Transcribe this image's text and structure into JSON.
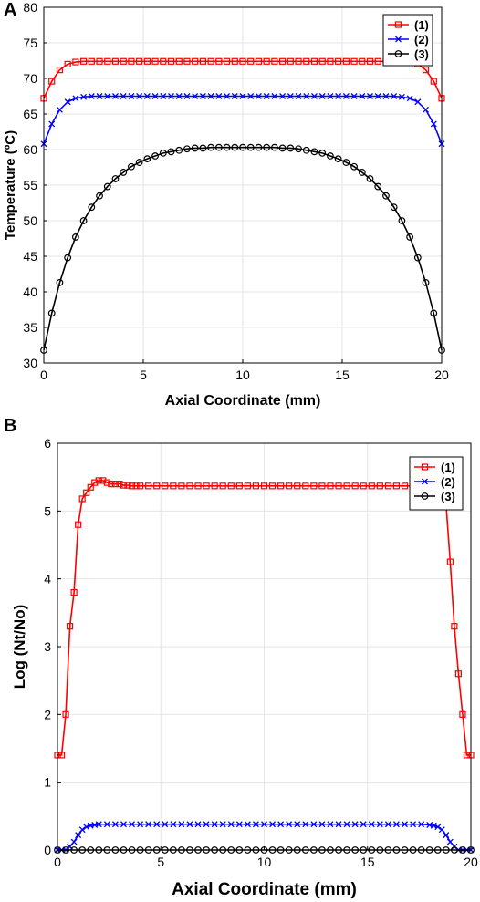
{
  "panels": {
    "a_label": "A",
    "b_label": "B"
  },
  "colors": {
    "series1": "#ff0000",
    "series2": "#0000ff",
    "series3": "#000000",
    "grid": "#e6e6e6"
  },
  "chart_data": [
    {
      "type": "line",
      "panel": "A",
      "xlabel": "Axial Coordinate (mm)",
      "ylabel": "Temperature (ºC)",
      "xlim": [
        0,
        20
      ],
      "ylim": [
        30,
        80
      ],
      "xticks": [
        "0",
        "5",
        "10",
        "15",
        "20"
      ],
      "yticks": [
        "30",
        "35",
        "40",
        "45",
        "50",
        "55",
        "60",
        "65",
        "70",
        "75",
        "80"
      ],
      "grid": true,
      "legend": "top-right",
      "series": [
        {
          "name": "(1)",
          "marker": "square",
          "color": "#ff0000",
          "x": [
            0,
            0.4,
            0.8,
            1.2,
            1.6,
            2,
            2.4,
            2.8,
            3.2,
            3.6,
            4,
            4.4,
            4.8,
            5.2,
            5.6,
            6,
            6.4,
            6.8,
            7.2,
            7.6,
            8,
            8.4,
            8.8,
            9.2,
            9.6,
            10,
            10.4,
            10.8,
            11.2,
            11.6,
            12,
            12.4,
            12.8,
            13.2,
            13.6,
            14,
            14.4,
            14.8,
            15.2,
            15.6,
            16,
            16.4,
            16.8,
            17.2,
            17.6,
            18,
            18.4,
            18.8,
            19.2,
            19.6,
            20
          ],
          "y": [
            67.2,
            69.6,
            71.2,
            72.0,
            72.3,
            72.4,
            72.4,
            72.4,
            72.4,
            72.4,
            72.4,
            72.4,
            72.4,
            72.4,
            72.4,
            72.4,
            72.4,
            72.4,
            72.4,
            72.4,
            72.4,
            72.4,
            72.4,
            72.4,
            72.4,
            72.4,
            72.4,
            72.4,
            72.4,
            72.4,
            72.4,
            72.4,
            72.4,
            72.4,
            72.4,
            72.4,
            72.4,
            72.4,
            72.4,
            72.4,
            72.4,
            72.4,
            72.4,
            72.4,
            72.4,
            72.4,
            72.3,
            72.0,
            71.2,
            69.6,
            67.2
          ]
        },
        {
          "name": "(2)",
          "marker": "x",
          "color": "#0000ff",
          "x": [
            0,
            0.4,
            0.8,
            1.2,
            1.6,
            2,
            2.4,
            2.8,
            3.2,
            3.6,
            4,
            4.4,
            4.8,
            5.2,
            5.6,
            6,
            6.4,
            6.8,
            7.2,
            7.6,
            8,
            8.4,
            8.8,
            9.2,
            9.6,
            10,
            10.4,
            10.8,
            11.2,
            11.6,
            12,
            12.4,
            12.8,
            13.2,
            13.6,
            14,
            14.4,
            14.8,
            15.2,
            15.6,
            16,
            16.4,
            16.8,
            17.2,
            17.6,
            18,
            18.4,
            18.8,
            19.2,
            19.6,
            20
          ],
          "y": [
            60.8,
            63.6,
            65.6,
            66.7,
            67.2,
            67.4,
            67.5,
            67.5,
            67.5,
            67.5,
            67.5,
            67.5,
            67.5,
            67.5,
            67.5,
            67.5,
            67.5,
            67.5,
            67.5,
            67.5,
            67.5,
            67.5,
            67.5,
            67.5,
            67.5,
            67.5,
            67.5,
            67.5,
            67.5,
            67.5,
            67.5,
            67.5,
            67.5,
            67.5,
            67.5,
            67.5,
            67.5,
            67.5,
            67.5,
            67.5,
            67.5,
            67.5,
            67.5,
            67.5,
            67.5,
            67.4,
            67.2,
            66.7,
            65.6,
            63.6,
            60.8
          ]
        },
        {
          "name": "(3)",
          "marker": "circle",
          "color": "#000000",
          "x": [
            0,
            0.4,
            0.8,
            1.2,
            1.6,
            2,
            2.4,
            2.8,
            3.2,
            3.6,
            4,
            4.4,
            4.8,
            5.2,
            5.6,
            6,
            6.4,
            6.8,
            7.2,
            7.6,
            8,
            8.4,
            8.8,
            9.2,
            9.6,
            10,
            10.4,
            10.8,
            11.2,
            11.6,
            12,
            12.4,
            12.8,
            13.2,
            13.6,
            14,
            14.4,
            14.8,
            15.2,
            15.6,
            16,
            16.4,
            16.8,
            17.2,
            17.6,
            18,
            18.4,
            18.8,
            19.2,
            19.6,
            20
          ],
          "y": [
            31.8,
            37.0,
            41.3,
            44.8,
            47.7,
            50.0,
            51.9,
            53.5,
            54.8,
            55.9,
            56.8,
            57.6,
            58.2,
            58.7,
            59.1,
            59.5,
            59.7,
            59.9,
            60.1,
            60.2,
            60.2,
            60.3,
            60.3,
            60.3,
            60.3,
            60.3,
            60.3,
            60.3,
            60.3,
            60.3,
            60.2,
            60.2,
            60.1,
            59.9,
            59.7,
            59.5,
            59.1,
            58.7,
            58.2,
            57.6,
            56.8,
            55.9,
            54.8,
            53.5,
            51.9,
            50.0,
            47.7,
            44.8,
            41.3,
            37.0,
            31.8
          ]
        }
      ]
    },
    {
      "type": "line",
      "panel": "B",
      "xlabel": "Axial Coordinate (mm)",
      "ylabel": "Log (Nt/No)",
      "xlim": [
        0,
        20
      ],
      "ylim": [
        0,
        6
      ],
      "xticks": [
        "0",
        "5",
        "10",
        "15",
        "20"
      ],
      "yticks": [
        "0",
        "1",
        "2",
        "3",
        "4",
        "5",
        "6"
      ],
      "grid": true,
      "legend": "top-right",
      "series": [
        {
          "name": "(1)",
          "marker": "square",
          "color": "#ff0000",
          "x": [
            0,
            0.2,
            0.4,
            0.6,
            0.8,
            1.0,
            1.2,
            1.4,
            1.6,
            1.8,
            2.0,
            2.2,
            2.4,
            2.6,
            2.8,
            3.0,
            3.2,
            3.4,
            3.6,
            3.8,
            4.0,
            4.4,
            4.8,
            5.2,
            5.6,
            6,
            6.4,
            6.8,
            7.2,
            7.6,
            8,
            8.4,
            8.8,
            9.2,
            9.6,
            10,
            10.4,
            10.8,
            11.2,
            11.6,
            12,
            12.4,
            12.8,
            13.2,
            13.6,
            14,
            14.4,
            14.8,
            15.2,
            15.6,
            16,
            16.4,
            16.8,
            17.2,
            17.6,
            18,
            18.4,
            18.8,
            19.0,
            19.2,
            19.4,
            19.6,
            19.8,
            20
          ],
          "y": [
            1.4,
            1.4,
            2.0,
            3.3,
            3.8,
            4.8,
            5.18,
            5.27,
            5.35,
            5.42,
            5.45,
            5.45,
            5.42,
            5.4,
            5.4,
            5.4,
            5.38,
            5.38,
            5.37,
            5.37,
            5.37,
            5.37,
            5.37,
            5.37,
            5.37,
            5.37,
            5.37,
            5.37,
            5.37,
            5.37,
            5.37,
            5.37,
            5.37,
            5.37,
            5.37,
            5.37,
            5.37,
            5.37,
            5.37,
            5.37,
            5.37,
            5.37,
            5.37,
            5.37,
            5.37,
            5.37,
            5.37,
            5.37,
            5.37,
            5.37,
            5.37,
            5.37,
            5.37,
            5.37,
            5.38,
            5.4,
            5.3,
            5.1,
            4.25,
            3.3,
            2.6,
            2.0,
            1.4,
            1.4
          ]
        },
        {
          "name": "(2)",
          "marker": "x",
          "color": "#0000ff",
          "x": [
            0,
            0.2,
            0.4,
            0.6,
            0.8,
            1.0,
            1.2,
            1.4,
            1.6,
            1.8,
            2.0,
            2.4,
            2.8,
            3.2,
            3.6,
            4.0,
            4.4,
            4.8,
            5.2,
            5.6,
            6,
            6.4,
            6.8,
            7.2,
            7.6,
            8,
            8.4,
            8.8,
            9.2,
            9.6,
            10,
            10.4,
            10.8,
            11.2,
            11.6,
            12,
            12.4,
            12.8,
            13.2,
            13.6,
            14,
            14.4,
            14.8,
            15.2,
            15.6,
            16,
            16.4,
            16.8,
            17.2,
            17.6,
            18.0,
            18.2,
            18.4,
            18.6,
            18.8,
            19.0,
            19.2,
            19.4,
            19.6,
            19.8,
            20
          ],
          "y": [
            0,
            0,
            0,
            0.05,
            0.12,
            0.22,
            0.3,
            0.34,
            0.36,
            0.37,
            0.38,
            0.38,
            0.38,
            0.38,
            0.38,
            0.38,
            0.38,
            0.38,
            0.38,
            0.38,
            0.38,
            0.38,
            0.38,
            0.38,
            0.38,
            0.38,
            0.38,
            0.38,
            0.38,
            0.38,
            0.38,
            0.38,
            0.38,
            0.38,
            0.38,
            0.38,
            0.38,
            0.38,
            0.38,
            0.38,
            0.38,
            0.38,
            0.38,
            0.38,
            0.38,
            0.38,
            0.38,
            0.38,
            0.38,
            0.38,
            0.37,
            0.36,
            0.34,
            0.3,
            0.22,
            0.12,
            0.05,
            0,
            0,
            0,
            0
          ]
        },
        {
          "name": "(3)",
          "marker": "circle",
          "color": "#000000",
          "x": [
            0,
            0.4,
            0.8,
            1.2,
            1.6,
            2,
            2.4,
            2.8,
            3.2,
            3.6,
            4,
            4.4,
            4.8,
            5.2,
            5.6,
            6,
            6.4,
            6.8,
            7.2,
            7.6,
            8,
            8.4,
            8.8,
            9.2,
            9.6,
            10,
            10.4,
            10.8,
            11.2,
            11.6,
            12,
            12.4,
            12.8,
            13.2,
            13.6,
            14,
            14.4,
            14.8,
            15.2,
            15.6,
            16,
            16.4,
            16.8,
            17.2,
            17.6,
            18,
            18.4,
            18.8,
            19.2,
            19.6,
            20
          ],
          "y": [
            0,
            0,
            0,
            0,
            0,
            0,
            0,
            0,
            0,
            0,
            0,
            0,
            0,
            0,
            0,
            0,
            0,
            0,
            0,
            0,
            0,
            0,
            0,
            0,
            0,
            0,
            0,
            0,
            0,
            0,
            0,
            0,
            0,
            0,
            0,
            0,
            0,
            0,
            0,
            0,
            0,
            0,
            0,
            0,
            0,
            0,
            0,
            0,
            0,
            0,
            0
          ]
        }
      ]
    }
  ]
}
